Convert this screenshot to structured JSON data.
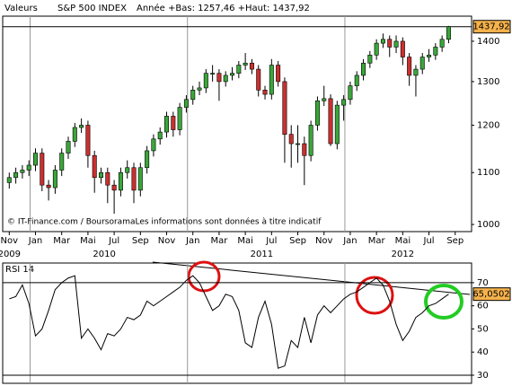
{
  "chart_data": [
    {
      "type": "candlestick",
      "header_label": "Valeurs",
      "title": "S&P 500 INDEX",
      "subtitle": "Année +Bas: 1257,46 +Haut: 1437,92",
      "source": "© IT-Finance.com / BoursoramaLes informations sont données à titre indicatif",
      "categories": [
        null,
        null,
        null,
        null,
        null,
        null,
        null,
        null,
        null,
        null,
        null,
        null,
        null,
        null,
        null,
        null,
        null,
        null,
        null,
        null,
        null,
        null,
        null,
        null,
        null,
        null,
        null,
        null,
        null,
        null,
        null,
        null,
        null,
        null,
        null,
        null,
        null,
        null,
        null,
        null,
        null,
        null,
        null,
        null,
        null,
        null,
        null,
        null,
        null,
        null,
        null,
        null,
        null,
        null,
        null,
        null,
        null,
        null,
        null,
        null,
        null,
        null,
        null,
        null,
        null,
        null,
        null,
        null
      ],
      "open": [
        1080,
        1090,
        1100,
        1105,
        1115,
        1140,
        1075,
        1070,
        1105,
        1140,
        1165,
        1195,
        1200,
        1135,
        1090,
        1100,
        1075,
        1065,
        1100,
        1110,
        1065,
        1110,
        1145,
        1170,
        1185,
        1220,
        1190,
        1240,
        1258,
        1280,
        1285,
        1320,
        1320,
        1300,
        1315,
        1320,
        1340,
        1345,
        1330,
        1280,
        1270,
        1340,
        1300,
        1180,
        1160,
        1160,
        1135,
        1200,
        1255,
        1260,
        1160,
        1245,
        1258,
        1290,
        1315,
        1345,
        1365,
        1395,
        1405,
        1385,
        1400,
        1360,
        1315,
        1330,
        1360,
        1365,
        1385,
        1405
      ],
      "high": [
        1100,
        1110,
        1115,
        1125,
        1150,
        1150,
        1085,
        1115,
        1150,
        1175,
        1205,
        1215,
        1210,
        1145,
        1110,
        1110,
        1085,
        1110,
        1125,
        1120,
        1120,
        1155,
        1180,
        1195,
        1230,
        1230,
        1250,
        1268,
        1290,
        1300,
        1330,
        1340,
        1330,
        1325,
        1335,
        1350,
        1370,
        1355,
        1340,
        1290,
        1355,
        1350,
        1310,
        1200,
        1200,
        1175,
        1210,
        1265,
        1290,
        1270,
        1255,
        1268,
        1300,
        1325,
        1355,
        1375,
        1405,
        1420,
        1415,
        1415,
        1410,
        1370,
        1340,
        1370,
        1380,
        1395,
        1415,
        1440
      ],
      "low": [
        1068,
        1078,
        1088,
        1093,
        1103,
        1063,
        1045,
        1058,
        1093,
        1128,
        1153,
        1183,
        1110,
        1060,
        1078,
        1040,
        1020,
        1053,
        1088,
        1040,
        1053,
        1098,
        1133,
        1158,
        1173,
        1175,
        1178,
        1228,
        1246,
        1268,
        1273,
        1300,
        1255,
        1288,
        1303,
        1308,
        1328,
        1318,
        1265,
        1258,
        1258,
        1288,
        1120,
        1110,
        1120,
        1075,
        1123,
        1188,
        1243,
        1155,
        1148,
        1210,
        1246,
        1278,
        1303,
        1333,
        1353,
        1383,
        1360,
        1370,
        1340,
        1290,
        1265,
        1318,
        1348,
        1353,
        1373,
        1395
      ],
      "close": [
        1090,
        1100,
        1105,
        1115,
        1140,
        1075,
        1070,
        1105,
        1140,
        1165,
        1195,
        1200,
        1135,
        1090,
        1100,
        1075,
        1065,
        1100,
        1110,
        1065,
        1110,
        1145,
        1170,
        1185,
        1220,
        1190,
        1240,
        1258,
        1280,
        1285,
        1320,
        1320,
        1300,
        1315,
        1320,
        1340,
        1345,
        1330,
        1280,
        1270,
        1340,
        1300,
        1180,
        1160,
        1160,
        1135,
        1200,
        1255,
        1260,
        1160,
        1245,
        1258,
        1290,
        1315,
        1345,
        1365,
        1395,
        1405,
        1385,
        1400,
        1360,
        1315,
        1330,
        1360,
        1365,
        1385,
        1405,
        1437.92
      ],
      "last_label": "1437,92",
      "up_color": "#3aa63a",
      "down_color": "#cc2f2f",
      "label_color": "#f6b24c",
      "log_scale": true,
      "ylim": [
        987,
        1466
      ],
      "yticks": [
        1000,
        1100,
        1200,
        1300,
        1400
      ],
      "xlim": [
        -1,
        70.5
      ],
      "xticks": [
        {
          "value": 0,
          "label": "Nov"
        },
        {
          "value": 4,
          "label": "Jan"
        },
        {
          "value": 8,
          "label": "Mar"
        },
        {
          "value": 12,
          "label": "Mai"
        },
        {
          "value": 16,
          "label": "Jul"
        },
        {
          "value": 20,
          "label": "Sep"
        },
        {
          "value": 24,
          "label": "Nov"
        },
        {
          "value": 28,
          "label": "Jan"
        },
        {
          "value": 32,
          "label": "Mar"
        },
        {
          "value": 36,
          "label": "Mai"
        },
        {
          "value": 40,
          "label": "Jul"
        },
        {
          "value": 44,
          "label": "Sep"
        },
        {
          "value": 48,
          "label": "Nov"
        },
        {
          "value": 52,
          "label": "Jan"
        },
        {
          "value": 56,
          "label": "Mar"
        },
        {
          "value": 60,
          "label": "Mai"
        },
        {
          "value": 64,
          "label": "Jul"
        },
        {
          "value": 68,
          "label": "Sep"
        }
      ],
      "year_labels": [
        {
          "value": 0,
          "label": "2009"
        },
        {
          "value": 14.5,
          "label": "2010"
        },
        {
          "value": 38.5,
          "label": "2011"
        },
        {
          "value": 60,
          "label": "2012"
        }
      ]
    },
    {
      "type": "line",
      "title": "RSI 14",
      "values": [
        63,
        64,
        69,
        61,
        47,
        50,
        58,
        67,
        70,
        72,
        73,
        46,
        50,
        46,
        41,
        48,
        47,
        50,
        55,
        54,
        56,
        62,
        60,
        62,
        64,
        66,
        68,
        71,
        73,
        70,
        64,
        58,
        60,
        65,
        64,
        58,
        44,
        42,
        55,
        62,
        52,
        33,
        34,
        45,
        42,
        55,
        44,
        56,
        60,
        57,
        60,
        63,
        65,
        66,
        68,
        70,
        72,
        69,
        62,
        52,
        45,
        49,
        55,
        57,
        60,
        61,
        63,
        65.0502
      ],
      "last_label": "65,0502",
      "color": "#000000",
      "label_color": "#f6b24c",
      "ylim": [
        26.5,
        78.5
      ],
      "yticks": [
        30,
        40,
        50,
        60,
        70
      ],
      "reference_lines": [
        70,
        30
      ],
      "xlim": [
        -1,
        70.5
      ]
    }
  ]
}
